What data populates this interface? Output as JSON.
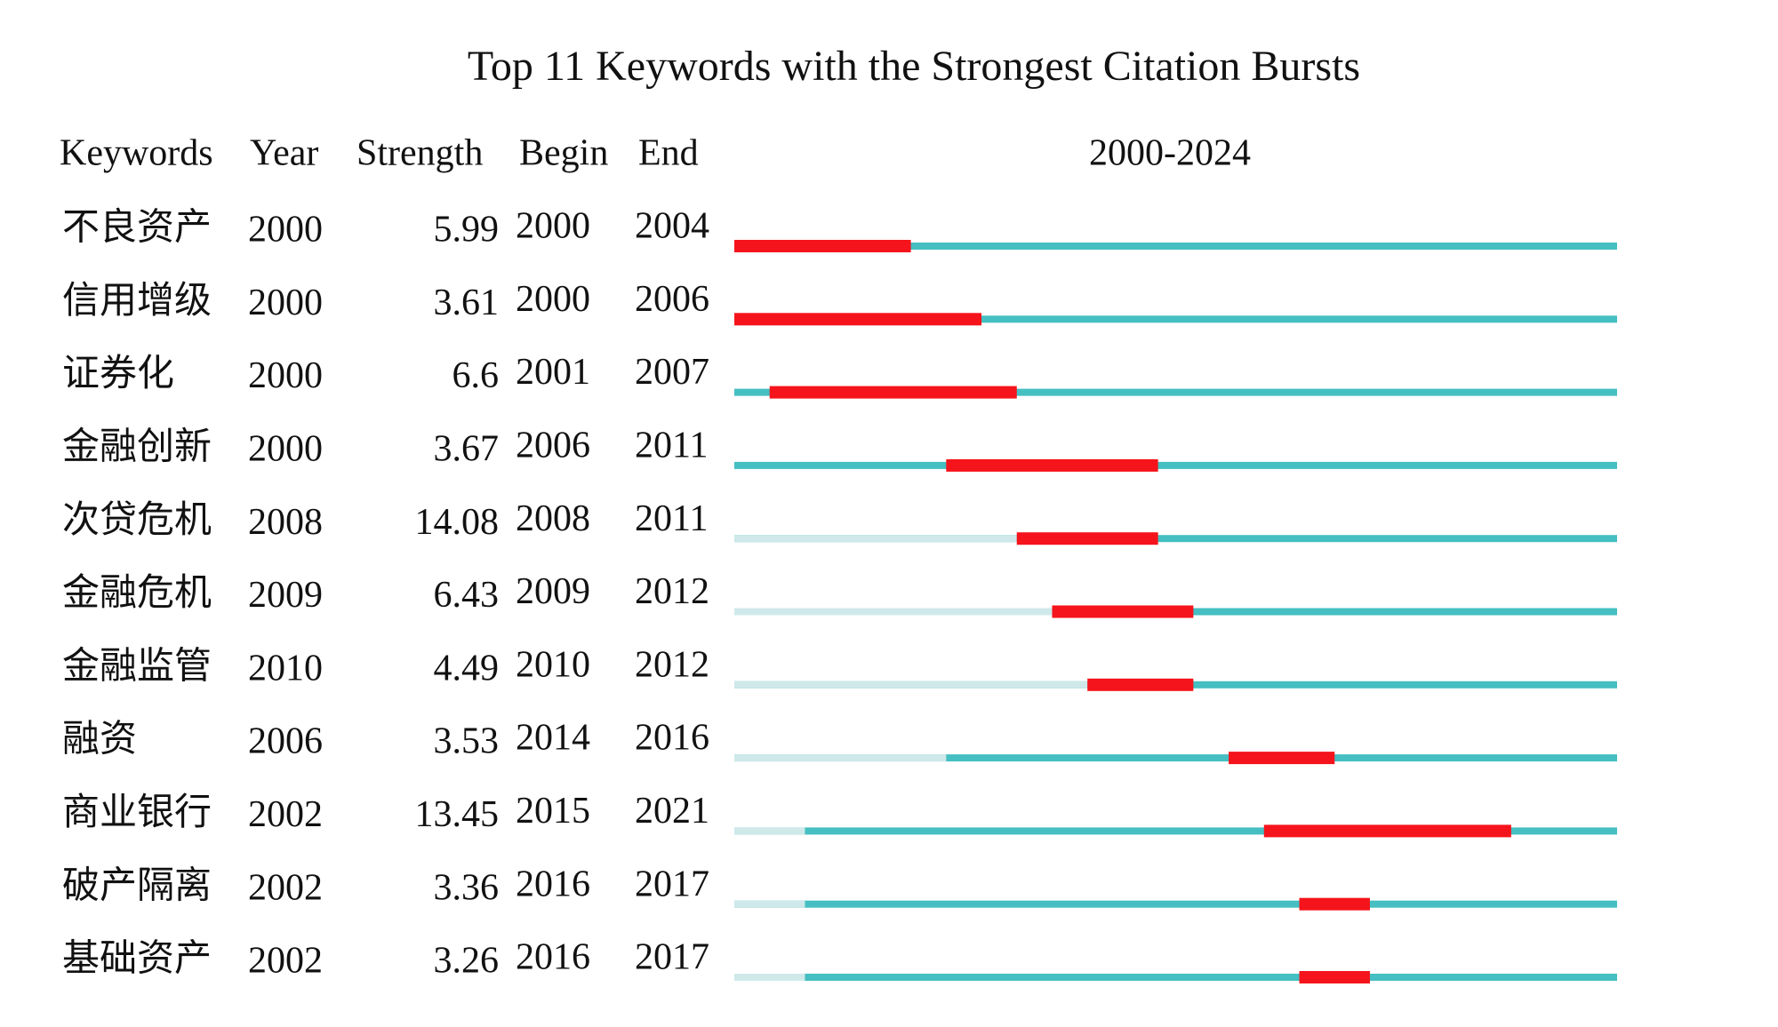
{
  "chart_data": {
    "type": "burst",
    "title": "Top 11 Keywords with the Strongest Citation Bursts",
    "columns": [
      "Keywords",
      "Year",
      "Strength",
      "Begin",
      "End"
    ],
    "range_label": "2000-2024",
    "xlim": [
      2000,
      2024
    ],
    "colors": {
      "burst": "#f5141b",
      "active": "#45bfc2",
      "inactive": "#cfe9ea"
    },
    "rows": [
      {
        "keyword": "不良资产",
        "year": 2000,
        "strength": 5.99,
        "begin": 2000,
        "end": 2004
      },
      {
        "keyword": "信用增级",
        "year": 2000,
        "strength": 3.61,
        "begin": 2000,
        "end": 2006
      },
      {
        "keyword": "证券化",
        "year": 2000,
        "strength": 6.6,
        "begin": 2001,
        "end": 2007
      },
      {
        "keyword": "金融创新",
        "year": 2000,
        "strength": 3.67,
        "begin": 2006,
        "end": 2011
      },
      {
        "keyword": "次贷危机",
        "year": 2008,
        "strength": 14.08,
        "begin": 2008,
        "end": 2011
      },
      {
        "keyword": "金融危机",
        "year": 2009,
        "strength": 6.43,
        "begin": 2009,
        "end": 2012
      },
      {
        "keyword": "金融监管",
        "year": 2010,
        "strength": 4.49,
        "begin": 2010,
        "end": 2012
      },
      {
        "keyword": "融资",
        "year": 2006,
        "strength": 3.53,
        "begin": 2014,
        "end": 2016
      },
      {
        "keyword": "商业银行",
        "year": 2002,
        "strength": 13.45,
        "begin": 2015,
        "end": 2021
      },
      {
        "keyword": "破产隔离",
        "year": 2002,
        "strength": 3.36,
        "begin": 2016,
        "end": 2017
      },
      {
        "keyword": "基础资产",
        "year": 2002,
        "strength": 3.26,
        "begin": 2016,
        "end": 2017
      }
    ]
  }
}
